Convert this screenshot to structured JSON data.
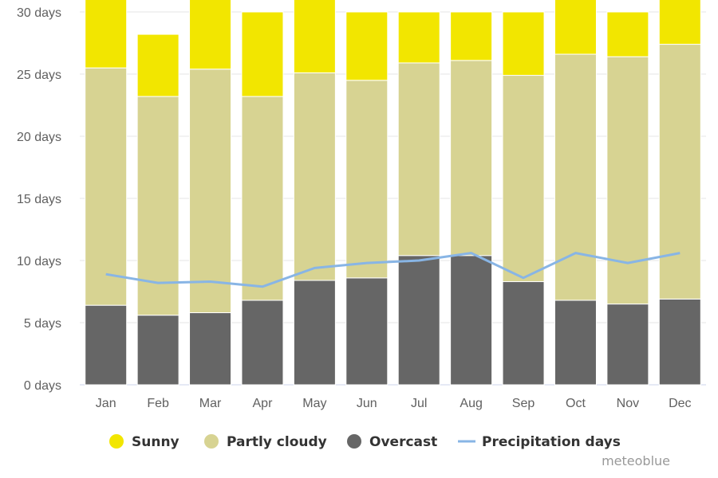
{
  "chart_data": {
    "type": "bar",
    "stacked": true,
    "categories": [
      "Jan",
      "Feb",
      "Mar",
      "Apr",
      "May",
      "Jun",
      "Jul",
      "Aug",
      "Sep",
      "Oct",
      "Nov",
      "Dec"
    ],
    "y_ticks": [
      "0 days",
      "5 days",
      "10 days",
      "15 days",
      "20 days",
      "25 days",
      "30 days"
    ],
    "ylim": [
      0,
      30
    ],
    "grid": true,
    "legend_position": "bottom",
    "series": [
      {
        "name": "Overcast",
        "kind": "bar",
        "color": "#666666",
        "values": [
          6.4,
          5.6,
          5.8,
          6.8,
          8.4,
          8.6,
          10.4,
          10.4,
          8.3,
          6.8,
          6.5,
          6.9
        ]
      },
      {
        "name": "Partly cloudy",
        "kind": "bar",
        "color": "#d7d392",
        "values": [
          19.1,
          17.6,
          19.6,
          16.4,
          16.7,
          15.9,
          15.5,
          15.7,
          16.6,
          19.8,
          19.9,
          20.5
        ]
      },
      {
        "name": "Sunny",
        "kind": "bar",
        "color": "#f2e600",
        "values": [
          5.5,
          5.0,
          5.6,
          6.8,
          5.9,
          5.5,
          4.1,
          3.9,
          5.1,
          4.4,
          3.6,
          3.6
        ]
      },
      {
        "name": "Precipitation days",
        "kind": "line",
        "color": "#88b5e5",
        "values": [
          8.9,
          8.2,
          8.3,
          7.9,
          9.4,
          9.8,
          10.0,
          10.6,
          8.6,
          10.6,
          9.8,
          10.6
        ]
      }
    ],
    "legend": [
      {
        "label": "Sunny",
        "marker": "dot",
        "color": "#f2e600"
      },
      {
        "label": "Partly cloudy",
        "marker": "dot",
        "color": "#d7d392"
      },
      {
        "label": "Overcast",
        "marker": "dot",
        "color": "#666666"
      },
      {
        "label": "Precipitation days",
        "marker": "line",
        "color": "#88b5e5"
      }
    ],
    "credit": "meteoblue"
  }
}
